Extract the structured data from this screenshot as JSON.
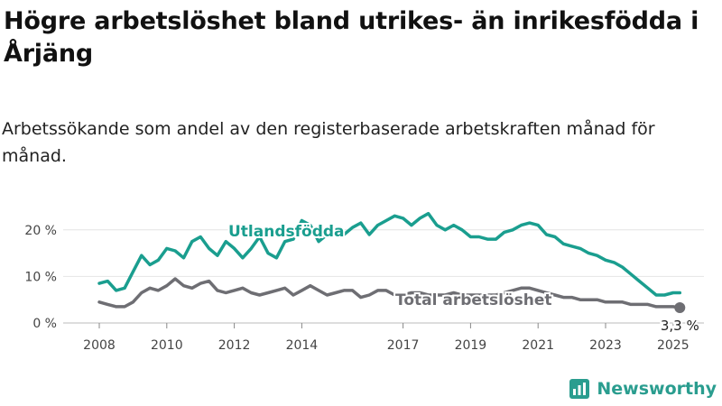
{
  "header": {
    "title": "Högre arbetslöshet bland utrikes- än inrikesfödda i Årjäng",
    "subtitle": "Arbetssökande som andel av den registerbaserade arbetskraften månad för månad."
  },
  "brand": {
    "name": "Newsworthy",
    "icon": "bar-chart-logo-icon",
    "color": "#2a9d8f"
  },
  "chart_data": {
    "type": "line",
    "x_ticks": [
      "2008",
      "2010",
      "2012",
      "2014",
      "2017",
      "2019",
      "2021",
      "2023",
      "2025"
    ],
    "y_ticks": [
      "0 %",
      "10 %",
      "20 %"
    ],
    "ylim": [
      0,
      25
    ],
    "grid": true,
    "series": [
      {
        "name": "Utlandsfödda",
        "color": "#1a9e8f",
        "x": [
          2008.0,
          2008.25,
          2008.5,
          2008.75,
          2009.0,
          2009.25,
          2009.5,
          2009.75,
          2010.0,
          2010.25,
          2010.5,
          2010.75,
          2011.0,
          2011.25,
          2011.5,
          2011.75,
          2012.0,
          2012.25,
          2012.5,
          2012.75,
          2013.0,
          2013.25,
          2013.5,
          2013.75,
          2014.0,
          2014.25,
          2014.5,
          2014.75,
          2015.0,
          2015.25,
          2015.5,
          2015.75,
          2016.0,
          2016.25,
          2016.5,
          2016.75,
          2017.0,
          2017.25,
          2017.5,
          2017.75,
          2018.0,
          2018.25,
          2018.5,
          2018.75,
          2019.0,
          2019.25,
          2019.5,
          2019.75,
          2020.0,
          2020.25,
          2020.5,
          2020.75,
          2021.0,
          2021.25,
          2021.5,
          2021.75,
          2022.0,
          2022.25,
          2022.5,
          2022.75,
          2023.0,
          2023.25,
          2023.5,
          2023.75,
          2024.0,
          2024.25,
          2024.5,
          2024.75,
          2025.0,
          2025.2
        ],
        "values": [
          8.5,
          9.0,
          7.0,
          7.5,
          11.0,
          14.5,
          12.5,
          13.5,
          16.0,
          15.5,
          14.0,
          17.5,
          18.5,
          16.0,
          14.5,
          17.5,
          16.0,
          14.0,
          16.0,
          18.5,
          15.0,
          14.0,
          17.5,
          18.0,
          22.0,
          21.0,
          17.5,
          19.0,
          20.0,
          19.0,
          20.5,
          21.5,
          19.0,
          21.0,
          22.0,
          23.0,
          22.5,
          21.0,
          22.5,
          23.5,
          21.0,
          20.0,
          21.0,
          20.0,
          18.5,
          18.5,
          18.0,
          18.0,
          19.5,
          20.0,
          21.0,
          21.5,
          21.0,
          19.0,
          18.5,
          17.0,
          16.5,
          16.0,
          15.0,
          14.5,
          13.5,
          13.0,
          12.0,
          10.5,
          9.0,
          7.5,
          6.0,
          6.0,
          6.5,
          6.5
        ]
      },
      {
        "name": "Total arbetslöshet",
        "color": "#6e6e73",
        "x": [
          2008.0,
          2008.25,
          2008.5,
          2008.75,
          2009.0,
          2009.25,
          2009.5,
          2009.75,
          2010.0,
          2010.25,
          2010.5,
          2010.75,
          2011.0,
          2011.25,
          2011.5,
          2011.75,
          2012.0,
          2012.25,
          2012.5,
          2012.75,
          2013.0,
          2013.25,
          2013.5,
          2013.75,
          2014.0,
          2014.25,
          2014.5,
          2014.75,
          2015.0,
          2015.25,
          2015.5,
          2015.75,
          2016.0,
          2016.25,
          2016.5,
          2016.75,
          2017.0,
          2017.25,
          2017.5,
          2017.75,
          2018.0,
          2018.25,
          2018.5,
          2018.75,
          2019.0,
          2019.25,
          2019.5,
          2019.75,
          2020.0,
          2020.25,
          2020.5,
          2020.75,
          2021.0,
          2021.25,
          2021.5,
          2021.75,
          2022.0,
          2022.25,
          2022.5,
          2022.75,
          2023.0,
          2023.25,
          2023.5,
          2023.75,
          2024.0,
          2024.25,
          2024.5,
          2024.75,
          2025.0,
          2025.2
        ],
        "values": [
          4.5,
          4.0,
          3.5,
          3.5,
          4.5,
          6.5,
          7.5,
          7.0,
          8.0,
          9.5,
          8.0,
          7.5,
          8.5,
          9.0,
          7.0,
          6.5,
          7.0,
          7.5,
          6.5,
          6.0,
          6.5,
          7.0,
          7.5,
          6.0,
          7.0,
          8.0,
          7.0,
          6.0,
          6.5,
          7.0,
          7.0,
          5.5,
          6.0,
          7.0,
          7.0,
          6.0,
          6.0,
          6.5,
          6.5,
          6.0,
          6.0,
          6.0,
          6.5,
          6.0,
          6.0,
          6.0,
          6.0,
          6.0,
          6.5,
          7.0,
          7.5,
          7.5,
          7.0,
          6.5,
          6.0,
          5.5,
          5.5,
          5.0,
          5.0,
          5.0,
          4.5,
          4.5,
          4.5,
          4.0,
          4.0,
          4.0,
          3.5,
          3.5,
          3.5,
          3.3
        ]
      }
    ],
    "end_label": "3,3 %"
  }
}
